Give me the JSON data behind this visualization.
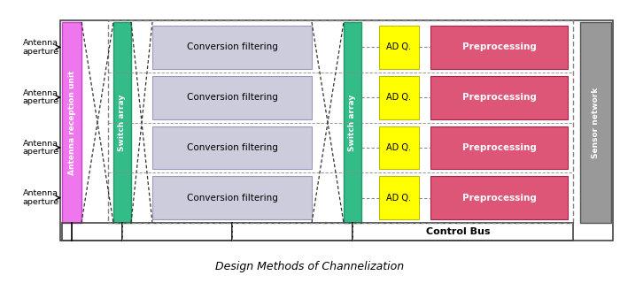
{
  "title": "Design Methods of Channelization",
  "bg_color": "#ffffff",
  "antenna_labels": [
    "Antenna\naperture",
    "Antenna\naperture",
    "Antenna\naperture",
    "Antenna\naperture"
  ],
  "antenna_reception_label": "Antenna reception unit",
  "antenna_reception_color": "#ee77ee",
  "switch_array_color": "#33bb88",
  "switch_array_label": "Switch array",
  "conversion_filtering_color": "#ccccdd",
  "conversion_filtering_label": "Conversion filtering",
  "adq_color": "#ffff00",
  "adq_label": "AD Q.",
  "preprocessing_color": "#dd5577",
  "preprocessing_label": "Preprocessing",
  "sensor_network_label": "Sensor network",
  "sensor_network_color": "#999999",
  "control_bus_label": "Control Bus",
  "dashed_color": "#888888",
  "cross_color": "#333333",
  "rows": 4,
  "figsize": [
    7.0,
    3.2
  ],
  "dpi": 100
}
